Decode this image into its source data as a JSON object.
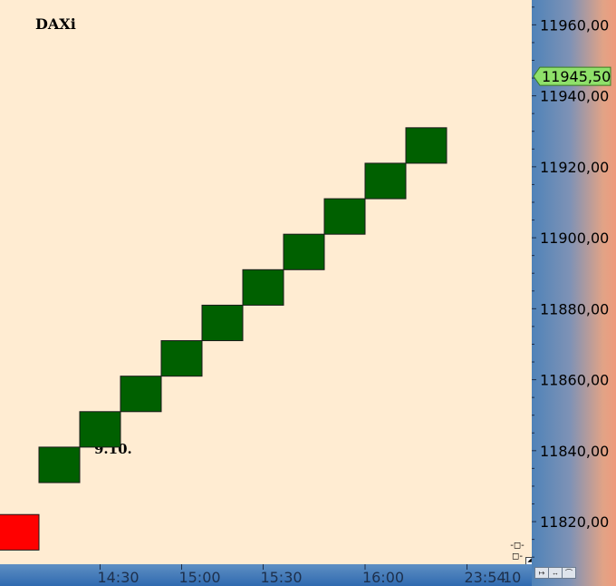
{
  "chart_data": {
    "type": "renko",
    "title": "DAXi",
    "annotation": "9.10.",
    "box_size": 10,
    "bricks": [
      {
        "low": 11812,
        "high": 11822,
        "direction": "down",
        "color": "#ff0000"
      },
      {
        "low": 11831,
        "high": 11841,
        "direction": "up",
        "color": "#006000"
      },
      {
        "low": 11841,
        "high": 11851,
        "direction": "up",
        "color": "#006000"
      },
      {
        "low": 11851,
        "high": 11861,
        "direction": "up",
        "color": "#006000"
      },
      {
        "low": 11861,
        "high": 11871,
        "direction": "up",
        "color": "#006000"
      },
      {
        "low": 11871,
        "high": 11881,
        "direction": "up",
        "color": "#006000"
      },
      {
        "low": 11881,
        "high": 11891,
        "direction": "up",
        "color": "#006000"
      },
      {
        "low": 11891,
        "high": 11901,
        "direction": "up",
        "color": "#006000"
      },
      {
        "low": 11901,
        "high": 11911,
        "direction": "up",
        "color": "#006000"
      },
      {
        "low": 11911,
        "high": 11921,
        "direction": "up",
        "color": "#006000"
      },
      {
        "low": 11921,
        "high": 11931,
        "direction": "up",
        "color": "#006000"
      }
    ],
    "y_ticks": [
      "11960,00",
      "11940,00",
      "11920,00",
      "11900,00",
      "11880,00",
      "11860,00",
      "11840,00",
      "11820,00"
    ],
    "y_tick_values": [
      11960,
      11940,
      11920,
      11900,
      11880,
      11860,
      11840,
      11820
    ],
    "ylim": [
      11808,
      11967
    ],
    "x_ticks": [
      "14:30",
      "15:00",
      "15:30",
      "16:00",
      "23:54"
    ],
    "x_tick_brick_index": [
      2.5,
      4.5,
      6.5,
      9,
      11.5
    ],
    "x_extra_label": "10",
    "last_price": {
      "value": 11945.5,
      "label": "11945,50",
      "color": "#8fe06a"
    },
    "grid": false,
    "legend": "none"
  },
  "toolbar": {
    "icons": [
      "arrow-right-icon",
      "arrow-both-icon",
      "chart-zoom-icon"
    ],
    "zoom_handle": "-◻-◻-"
  }
}
